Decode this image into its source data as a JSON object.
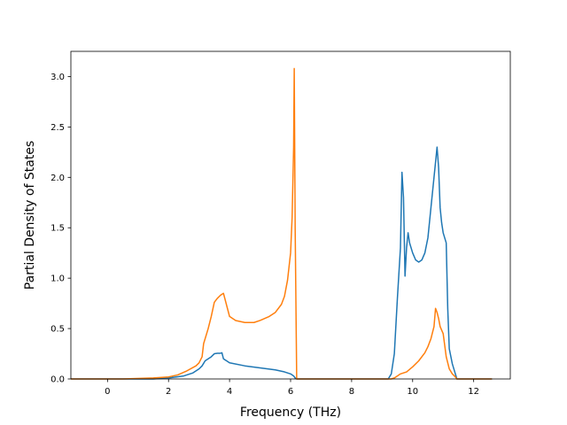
{
  "chart_data": {
    "type": "line",
    "title": "",
    "xlabel": "Frequency (THz)",
    "ylabel": "Partial Density of States",
    "xlim": [
      -1.2,
      13.2
    ],
    "ylim": [
      0.0,
      3.25
    ],
    "xticks": [
      0,
      2,
      4,
      6,
      8,
      10,
      12
    ],
    "yticks": [
      0.0,
      0.5,
      1.0,
      1.5,
      2.0,
      2.5,
      3.0
    ],
    "xtick_labels": [
      "0",
      "2",
      "4",
      "6",
      "8",
      "10",
      "12"
    ],
    "ytick_labels": [
      "0.0",
      "0.5",
      "1.0",
      "1.5",
      "2.0",
      "2.5",
      "3.0"
    ],
    "grid": false,
    "legend": "none",
    "series": [
      {
        "color": "#1f77b4",
        "x": [
          -1.2,
          0.5,
          1.5,
          2.0,
          2.5,
          2.8,
          3.0,
          3.1,
          3.2,
          3.3,
          3.4,
          3.5,
          3.6,
          3.7,
          3.75,
          3.8,
          4.0,
          4.5,
          5.0,
          5.5,
          5.8,
          6.0,
          6.1,
          6.15,
          6.2,
          8.0,
          9.2,
          9.3,
          9.4,
          9.5,
          9.6,
          9.65,
          9.7,
          9.75,
          9.8,
          9.85,
          9.9,
          10.0,
          10.1,
          10.2,
          10.3,
          10.4,
          10.5,
          10.6,
          10.7,
          10.8,
          10.85,
          10.9,
          10.95,
          11.0,
          11.1,
          11.15,
          11.2,
          11.3,
          11.4,
          11.45,
          12.6
        ],
        "y": [
          0.0,
          0.0,
          0.0,
          0.01,
          0.03,
          0.06,
          0.1,
          0.13,
          0.18,
          0.2,
          0.22,
          0.25,
          0.255,
          0.255,
          0.26,
          0.2,
          0.16,
          0.13,
          0.11,
          0.09,
          0.07,
          0.05,
          0.03,
          0.01,
          0.0,
          0.0,
          0.0,
          0.05,
          0.25,
          0.8,
          1.3,
          2.05,
          1.8,
          1.02,
          1.3,
          1.45,
          1.35,
          1.25,
          1.18,
          1.16,
          1.18,
          1.25,
          1.4,
          1.7,
          2.0,
          2.3,
          2.1,
          1.7,
          1.55,
          1.45,
          1.35,
          0.7,
          0.3,
          0.15,
          0.05,
          0.0,
          0.0
        ]
      },
      {
        "color": "#ff7f0e",
        "x": [
          -1.2,
          0.5,
          1.5,
          2.0,
          2.3,
          2.6,
          2.9,
          3.0,
          3.1,
          3.15,
          3.2,
          3.3,
          3.4,
          3.5,
          3.6,
          3.7,
          3.75,
          3.8,
          4.0,
          4.2,
          4.5,
          4.8,
          5.0,
          5.3,
          5.5,
          5.7,
          5.8,
          5.9,
          6.0,
          6.05,
          6.1,
          6.12,
          6.15,
          6.2,
          8.0,
          9.3,
          9.4,
          9.5,
          9.6,
          9.8,
          10.0,
          10.2,
          10.4,
          10.5,
          10.6,
          10.7,
          10.75,
          10.8,
          10.85,
          10.9,
          11.0,
          11.1,
          11.2,
          11.3,
          11.4,
          11.45,
          12.6
        ],
        "y": [
          0.0,
          0.0,
          0.01,
          0.02,
          0.04,
          0.08,
          0.13,
          0.16,
          0.22,
          0.35,
          0.4,
          0.5,
          0.62,
          0.76,
          0.8,
          0.83,
          0.84,
          0.85,
          0.62,
          0.58,
          0.56,
          0.56,
          0.58,
          0.62,
          0.66,
          0.74,
          0.82,
          0.98,
          1.25,
          1.6,
          2.3,
          3.08,
          1.5,
          0.0,
          0.0,
          0.0,
          0.01,
          0.03,
          0.05,
          0.07,
          0.12,
          0.18,
          0.26,
          0.32,
          0.4,
          0.52,
          0.7,
          0.66,
          0.6,
          0.52,
          0.45,
          0.22,
          0.1,
          0.05,
          0.02,
          0.0,
          0.0
        ]
      }
    ]
  }
}
